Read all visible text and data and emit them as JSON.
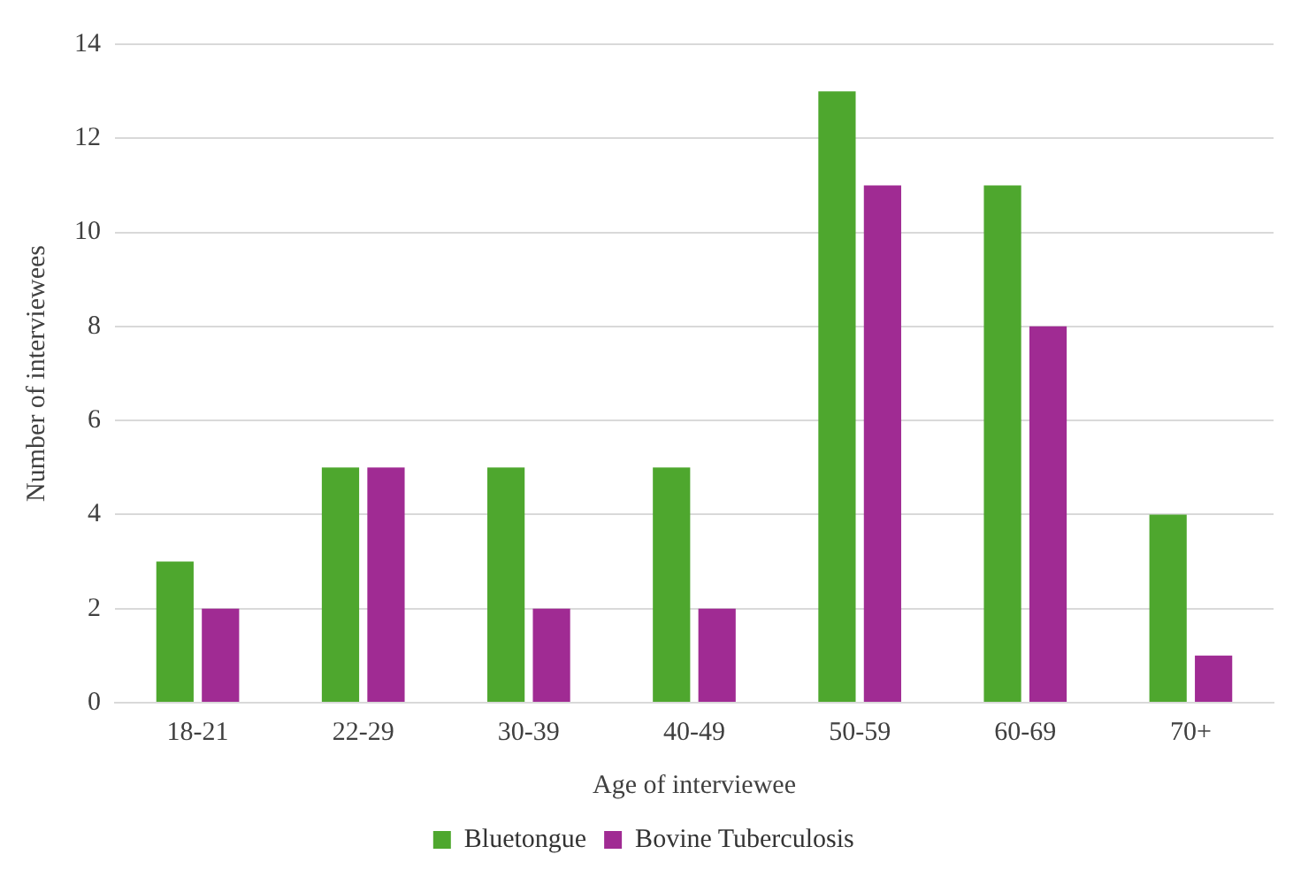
{
  "chart_data": {
    "type": "bar",
    "xlabel": "Age of interviewee",
    "ylabel": "Number of interviewees",
    "categories": [
      "18-21",
      "22-29",
      "30-39",
      "40-49",
      "50-59",
      "60-69",
      "70+"
    ],
    "series": [
      {
        "name": "Bluetongue",
        "color": "#4ea72e",
        "values": [
          3,
          5,
          5,
          5,
          13,
          11,
          4
        ]
      },
      {
        "name": "Bovine Tuberculosis",
        "color": "#a02b93",
        "values": [
          2,
          5,
          2,
          2,
          11,
          8,
          1
        ]
      }
    ],
    "ylim": [
      0,
      14
    ],
    "yticks": [
      0,
      2,
      4,
      6,
      8,
      10,
      12,
      14
    ],
    "grid": "y",
    "legend": "bottom"
  }
}
